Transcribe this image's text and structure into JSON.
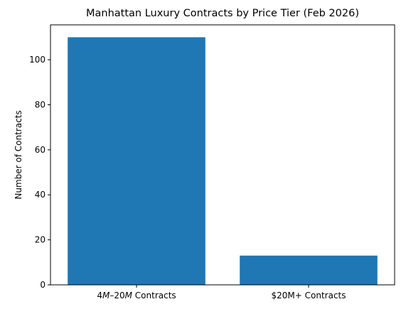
{
  "chart_data": {
    "type": "bar",
    "title": "Manhattan Luxury Contracts by Price Tier (Feb 2026)",
    "xlabel": "",
    "ylabel": "Number of Contracts",
    "categories": [
      "4M–20M Contracts",
      "$20M+ Contracts"
    ],
    "values": [
      110,
      13
    ],
    "ylim": [
      0,
      115.5
    ],
    "yticks": [
      0,
      20,
      40,
      60,
      80,
      100
    ],
    "bar_color": "#1f77b4",
    "grid": false,
    "legend": "none"
  }
}
